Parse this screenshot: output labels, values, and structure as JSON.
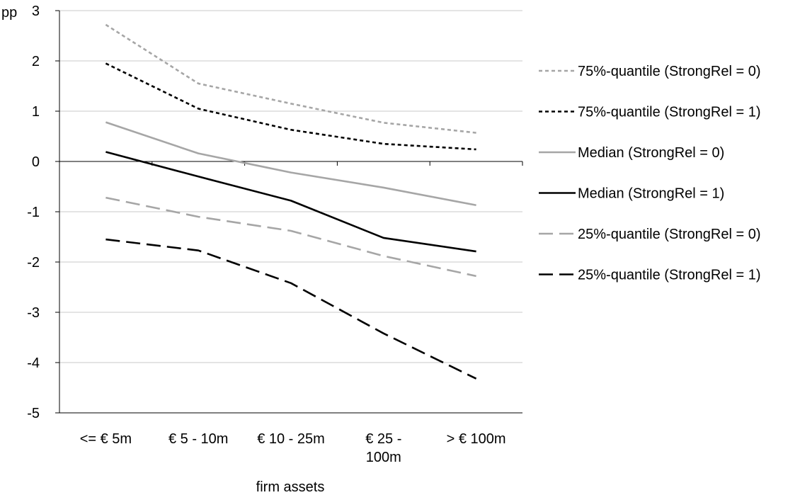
{
  "chart_data": {
    "type": "line",
    "title": "",
    "xlabel": "firm assets",
    "ylabel": "pp",
    "ylim": [
      -5,
      3
    ],
    "yticks": [
      3,
      2,
      1,
      0,
      -1,
      -2,
      -3,
      -4,
      -5
    ],
    "categories": [
      "<= € 5m",
      "€ 5 - 10m",
      "€ 10 - 25m",
      "€ 25 - 100m",
      "> € 100m"
    ],
    "category_lines": [
      [
        "<= € 5m"
      ],
      [
        "€ 5 - 10m"
      ],
      [
        "€ 10 - 25m"
      ],
      [
        "€ 25 -",
        "100m"
      ],
      [
        "> € 100m"
      ]
    ],
    "grid": "horizontal",
    "legend_position": "right",
    "series": [
      {
        "name": "75%-quantile (StrongRel = 0)",
        "values": [
          2.72,
          1.55,
          1.15,
          0.77,
          0.57
        ],
        "color": "#a6a6a6",
        "style": "short-dash"
      },
      {
        "name": "75%-quantile (StrongRel = 1)",
        "values": [
          1.95,
          1.05,
          0.63,
          0.35,
          0.24
        ],
        "color": "#000000",
        "style": "short-dash"
      },
      {
        "name": "Median (StrongRel = 0)",
        "values": [
          0.78,
          0.16,
          -0.22,
          -0.52,
          -0.87
        ],
        "color": "#a6a6a6",
        "style": "solid"
      },
      {
        "name": "Median (StrongRel = 1)",
        "values": [
          0.19,
          -0.3,
          -0.78,
          -1.52,
          -1.79
        ],
        "color": "#000000",
        "style": "solid"
      },
      {
        "name": "25%-quantile (StrongRel = 0)",
        "values": [
          -0.72,
          -1.1,
          -1.38,
          -1.88,
          -2.28
        ],
        "color": "#a6a6a6",
        "style": "long-dash"
      },
      {
        "name": "25%-quantile (StrongRel = 1)",
        "values": [
          -1.55,
          -1.77,
          -2.42,
          -3.42,
          -4.32
        ],
        "color": "#000000",
        "style": "long-dash"
      }
    ]
  }
}
